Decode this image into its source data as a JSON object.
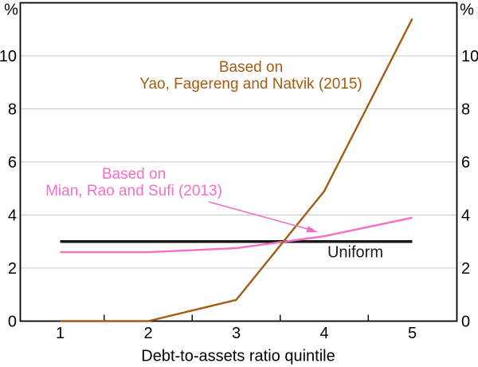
{
  "chart_data": {
    "type": "line",
    "title": "",
    "xlabel": "Debt-to-assets ratio quintile",
    "ylabel": "%",
    "unit": "%",
    "x": [
      1,
      2,
      3,
      4,
      5
    ],
    "xtick_labels": [
      "1",
      "2",
      "3",
      "4",
      "5"
    ],
    "minor_xticks": [
      1.5,
      2.5,
      3.5,
      4.5
    ],
    "ylim": [
      0,
      12
    ],
    "yticks": [
      0,
      2,
      4,
      6,
      8,
      10
    ],
    "grid": "horizontal",
    "legend_position": "inline-annotations",
    "series": [
      {
        "name": "Uniform",
        "color": "#1a1a1a",
        "width": 3.6,
        "values": [
          3,
          3,
          3,
          3,
          3
        ]
      },
      {
        "name": "Based on Mian, Rao and Sufi (2013)",
        "color": "#f76ec6",
        "width": 2.4,
        "values": [
          2.6,
          2.6,
          2.75,
          3.2,
          3.9
        ]
      },
      {
        "name": "Based on Yao, Fagereng and Natvik (2015)",
        "color": "#a45c12",
        "width": 2.4,
        "values": [
          0,
          0,
          0.8,
          4.9,
          11.4
        ]
      }
    ]
  },
  "annotations": {
    "yao": {
      "line1": "Based on",
      "line2": "Yao, Fagereng and Natvik (2015)",
      "color": "#a45c12"
    },
    "mian": {
      "line1": "Based on",
      "line2": "Mian, Rao and Sufi (2013)",
      "color": "#f76ec6"
    },
    "uniform_label": "Uniform"
  },
  "colors": {
    "frame": "#000000",
    "gridline": "#c8c8c8",
    "background": "#ffffff"
  }
}
